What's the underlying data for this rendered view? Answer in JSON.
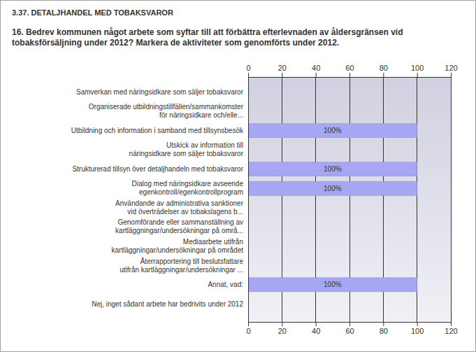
{
  "chart_data": {
    "type": "bar",
    "orientation": "horizontal",
    "title": "3.37. DETALJHANDEL MED TOBAKSVAROR",
    "subtitle": "16. Bedrev kommunen något arbete som syftar till att förbättra efterlevnaden av åldersgränsen vid\ntobaksförsäljning under 2012? Markera de aktiviteter som genomförts under 2012.",
    "categories": [
      "Samverkan med näringsidkare som säljer tobaksvaror",
      "Organiserade utbildningstillfällen/sammankomster\nför näringsidkare och/elle...",
      "Utbildning och information i samband med tillsynsbesök",
      "Utskick av information till\nnäringsidkare som säljer tobaksvaror",
      "Strukturerad tillsyn över detaljhandeln med tobaksvaror",
      "Dialog med näringsidkare avseende\negenkontroll/egenkontrollprogram",
      "Användande av administrativa sanktioner\nvid överträdelser av tobakslagens b...",
      "Genomförande eller sammanställning av\nkartläggningar/undersökningar på områ...",
      "Mediaarbete utifrån\nkartläggningar/undersökningar på området",
      "Återrapportering till beslutsfattare\nutifrån kartläggningar/undersökningar ...",
      "Annat, vad:",
      "Nej, inget sådant arbete har bedrivits under 2012"
    ],
    "values": [
      0,
      0,
      100,
      0,
      100,
      100,
      0,
      0,
      0,
      0,
      100,
      0
    ],
    "value_labels": [
      null,
      null,
      "100%",
      null,
      "100%",
      "100%",
      null,
      null,
      null,
      null,
      "100%",
      null
    ],
    "color": "#a6a6f2",
    "xlim": [
      0,
      120
    ],
    "xticks": [
      0,
      20,
      40,
      60,
      80,
      100,
      120
    ],
    "grid": true,
    "data_labels": true
  }
}
